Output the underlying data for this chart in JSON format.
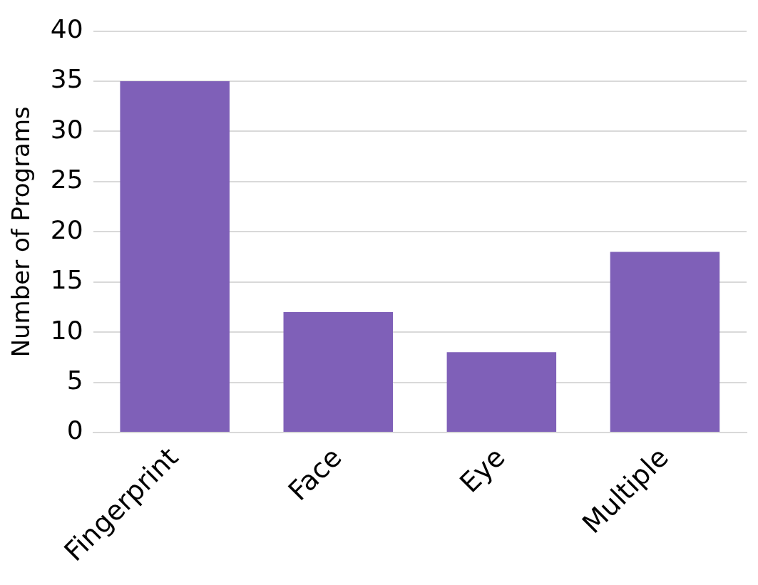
{
  "chart_data": {
    "type": "bar",
    "ylabel": "Number of Programs",
    "categories": [
      "Fingerprint",
      "Face",
      "Eye",
      "Multiple"
    ],
    "values": [
      35,
      12,
      8,
      18
    ],
    "color": "#7f60b8",
    "ylim": [
      0,
      40
    ],
    "yticks": [
      0,
      5,
      10,
      15,
      20,
      25,
      30,
      35,
      40
    ],
    "grid": "y"
  }
}
